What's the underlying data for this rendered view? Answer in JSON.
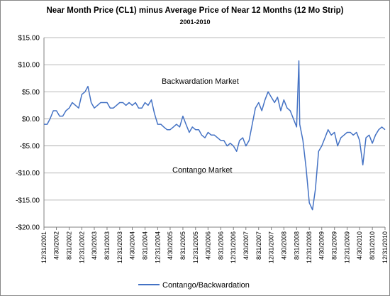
{
  "chart_data": {
    "type": "line",
    "title": "Near Month Price (CL1) minus Average Price of Near 12 Months (12 Mo Strip)",
    "subtitle": "2001-2010",
    "annotations": [
      "Backwardation Market",
      "Contango Market"
    ],
    "x": [
      "12/31/2001",
      "1/31/2002",
      "2/28/2002",
      "3/31/2002",
      "4/30/2002",
      "5/31/2002",
      "6/30/2002",
      "7/31/2002",
      "8/31/2002",
      "9/30/2002",
      "10/31/2002",
      "11/30/2002",
      "12/31/2002",
      "1/31/2003",
      "2/28/2003",
      "3/31/2003",
      "4/30/2003",
      "5/31/2003",
      "6/30/2003",
      "7/31/2003",
      "8/31/2003",
      "9/30/2003",
      "10/31/2003",
      "11/30/2003",
      "12/31/2003",
      "1/31/2004",
      "2/29/2004",
      "3/31/2004",
      "4/30/2004",
      "5/31/2004",
      "6/30/2004",
      "7/31/2004",
      "8/31/2004",
      "9/30/2004",
      "10/31/2004",
      "11/30/2004",
      "12/31/2004",
      "1/31/2005",
      "2/28/2005",
      "3/31/2005",
      "4/30/2005",
      "5/31/2005",
      "6/30/2005",
      "7/31/2005",
      "8/31/2005",
      "9/30/2005",
      "10/31/2005",
      "11/30/2005",
      "12/31/2005",
      "1/31/2006",
      "2/28/2006",
      "3/31/2006",
      "4/30/2006",
      "5/31/2006",
      "6/30/2006",
      "7/31/2006",
      "8/31/2006",
      "9/30/2006",
      "10/31/2006",
      "11/30/2006",
      "12/31/2006",
      "1/31/2007",
      "2/28/2007",
      "3/31/2007",
      "4/30/2007",
      "5/31/2007",
      "6/30/2007",
      "7/31/2007",
      "8/31/2007",
      "9/30/2007",
      "10/31/2007",
      "11/30/2007",
      "12/31/2007",
      "1/31/2008",
      "2/29/2008",
      "3/31/2008",
      "4/30/2008",
      "5/31/2008",
      "6/30/2008",
      "7/31/2008",
      "8/31/2008",
      "9/22/2008",
      "9/30/2008",
      "10/31/2008",
      "11/30/2008",
      "12/31/2008",
      "1/31/2009",
      "2/28/2009",
      "3/31/2009",
      "4/30/2009",
      "5/31/2009",
      "6/30/2009",
      "7/31/2009",
      "8/31/2009",
      "9/30/2009",
      "10/31/2009",
      "11/30/2009",
      "12/31/2009",
      "1/31/2010",
      "2/28/2010",
      "3/31/2010",
      "4/30/2010",
      "5/31/2010",
      "6/30/2010",
      "7/31/2010",
      "8/31/2010",
      "9/30/2010",
      "10/31/2010",
      "11/30/2010",
      "12/31/2010"
    ],
    "series": [
      {
        "name": "Contango/Backwardation",
        "color": "#4472c4",
        "values": [
          -1,
          -1,
          0,
          1.5,
          1.5,
          0.5,
          0.5,
          1.5,
          2,
          3,
          2.5,
          2,
          4.5,
          5,
          6,
          3,
          2,
          2.5,
          3,
          3,
          3,
          2,
          2,
          2.5,
          3,
          3,
          2.5,
          3,
          2.5,
          3,
          2,
          2,
          3,
          2.5,
          3.5,
          1,
          -1,
          -1,
          -1.5,
          -2,
          -2,
          -1.5,
          -1,
          -1.5,
          0.5,
          -1,
          -2.5,
          -1.5,
          -2,
          -2,
          -3,
          -3.5,
          -2.5,
          -3,
          -3,
          -3.5,
          -4,
          -4,
          -5,
          -4.5,
          -5,
          -6,
          -4,
          -3.5,
          -5,
          -4,
          -1,
          2,
          3,
          1.5,
          3.5,
          5,
          4,
          3,
          4,
          1.5,
          3.5,
          2,
          1.5,
          0,
          -1.5,
          10.7,
          -1,
          -4,
          -9,
          -15.5,
          -16.8,
          -13,
          -6,
          -5,
          -3.5,
          -2,
          -3,
          -2.5,
          -5,
          -3.5,
          -3,
          -2.5,
          -2.5,
          -3,
          -2.5,
          -4,
          -8.5,
          -3.5,
          -3,
          -4.5,
          -3,
          -2,
          -1.5,
          -2
        ]
      }
    ],
    "xlim": [
      "12/31/2001",
      "12/31/2010"
    ],
    "xticks": [
      "12/31/2001",
      "4/30/2002",
      "8/31/2002",
      "12/31/2002",
      "4/30/2003",
      "8/31/2003",
      "12/31/2003",
      "4/30/2004",
      "8/31/2004",
      "12/31/2004",
      "4/30/2005",
      "8/31/2005",
      "12/31/2005",
      "4/30/2006",
      "8/31/2006",
      "12/31/2006",
      "4/30/2007",
      "8/31/2007",
      "12/31/2007",
      "4/30/2008",
      "8/31/2008",
      "12/31/2008",
      "4/30/2009",
      "8/31/2009",
      "12/31/2009",
      "4/30/2010",
      "8/31/2010",
      "12/31/2010"
    ],
    "ylim": [
      -20,
      15
    ],
    "yticks": [
      {
        "value": 15,
        "label": "$15.00"
      },
      {
        "value": 10,
        "label": "$10.00"
      },
      {
        "value": 5,
        "label": "$5.00"
      },
      {
        "value": 0,
        "label": "$0.00"
      },
      {
        "value": -5,
        "label": "-$5.00"
      },
      {
        "value": -10,
        "label": "-$10.00"
      },
      {
        "value": -15,
        "label": "-$15.00"
      },
      {
        "value": -20,
        "label": "-$20.00"
      }
    ],
    "grid": true,
    "legend": "bottom"
  }
}
